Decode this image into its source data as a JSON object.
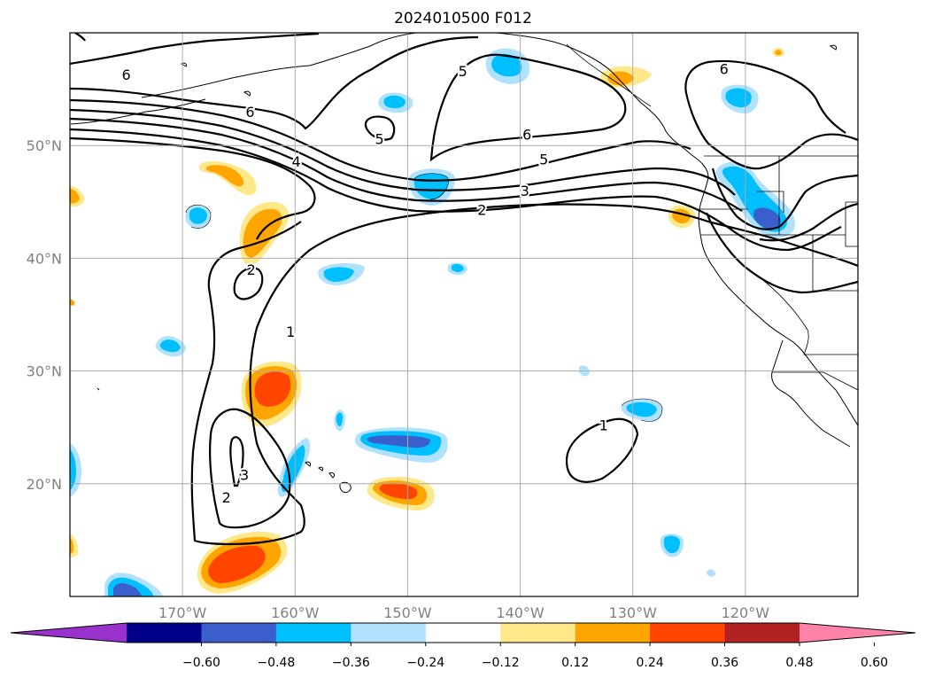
{
  "title": "2024010500 F012",
  "map": {
    "lon_range": [
      -180,
      -110
    ],
    "lat_range": [
      10,
      60
    ],
    "grid": true,
    "lon_ticks": [
      {
        "lon": -170,
        "label": "170°W"
      },
      {
        "lon": -160,
        "label": "160°W"
      },
      {
        "lon": -150,
        "label": "150°W"
      },
      {
        "lon": -140,
        "label": "140°W"
      },
      {
        "lon": -130,
        "label": "130°W"
      },
      {
        "lon": -120,
        "label": "120°W"
      }
    ],
    "lat_ticks": [
      {
        "lat": 50,
        "label": "50°N"
      },
      {
        "lat": 40,
        "label": "40°N"
      },
      {
        "lat": 30,
        "label": "30°N"
      },
      {
        "lat": 20,
        "label": "20°N"
      }
    ]
  },
  "colorbar": {
    "ticks": [
      "−0.60",
      "−0.48",
      "−0.36",
      "−0.24",
      "−0.12",
      "0.12",
      "0.24",
      "0.36",
      "0.48",
      "0.60"
    ],
    "colors": [
      "#9932cc",
      "#00008b",
      "#3a5fcd",
      "#00bfff",
      "#b0e2ff",
      "#ffffff",
      "#ffe88a",
      "#ffa500",
      "#ff4500",
      "#b22222",
      "#ff83a8"
    ]
  },
  "contour_labels": [
    {
      "text": "6",
      "lon": -175,
      "lat": 56.3
    },
    {
      "text": "6",
      "lon": -164,
      "lat": 53.0
    },
    {
      "text": "4",
      "lon": -159.9,
      "lat": 48.6
    },
    {
      "text": "5",
      "lon": -152.5,
      "lat": 50.6
    },
    {
      "text": "5",
      "lon": -145.1,
      "lat": 56.6
    },
    {
      "text": "6",
      "lon": -139.4,
      "lat": 51.0
    },
    {
      "text": "5",
      "lon": -137.9,
      "lat": 48.8
    },
    {
      "text": "3",
      "lon": -139.6,
      "lat": 46.0
    },
    {
      "text": "2",
      "lon": -143.4,
      "lat": 44.3
    },
    {
      "text": "6",
      "lon": -121.9,
      "lat": 56.8
    },
    {
      "text": "2",
      "lon": -163.9,
      "lat": 39.0
    },
    {
      "text": "1",
      "lon": -160.4,
      "lat": 33.5
    },
    {
      "text": "3",
      "lon": -164.5,
      "lat": 20.8
    },
    {
      "text": "2",
      "lon": -166.1,
      "lat": 18.8
    },
    {
      "text": "1",
      "lon": -132.6,
      "lat": 25.2
    }
  ]
}
